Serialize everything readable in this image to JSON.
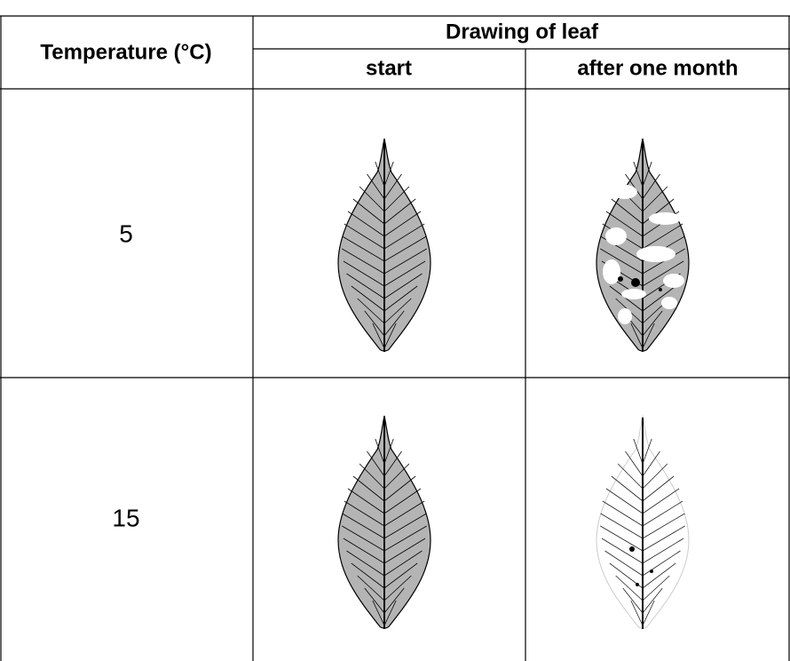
{
  "table": {
    "header": {
      "first": "Temperature (°C)",
      "group": "Drawing of leaf",
      "columns": [
        "start",
        "after one month"
      ]
    },
    "rows": [
      "5",
      "15"
    ]
  }
}
